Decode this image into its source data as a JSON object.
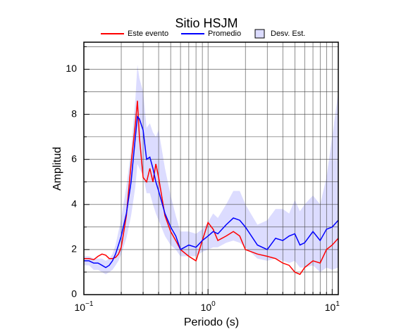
{
  "chart_data": {
    "type": "line",
    "title": "Sitio HSJM",
    "xlabel": "Periodo (s)",
    "ylabel": "Amplitud",
    "xscale": "log",
    "grid": true,
    "legend": "top",
    "xlim": [
      0.1,
      11.2
    ],
    "ylim": [
      0,
      11.2
    ],
    "xticks": [
      {
        "value": 0.1,
        "label": "10",
        "exponent": "−1"
      },
      {
        "value": 1,
        "label": "10",
        "exponent": "0"
      },
      {
        "value": 10,
        "label": "10",
        "exponent": "1"
      }
    ],
    "xminorticks": [
      0.2,
      0.3,
      0.4,
      0.5,
      0.6,
      0.7,
      0.8,
      0.9,
      2,
      3,
      4,
      5,
      6,
      7,
      8,
      9
    ],
    "yticks": [
      0,
      2,
      4,
      6,
      8,
      10
    ],
    "yminorticks": [
      1,
      3,
      5,
      7,
      9,
      11
    ],
    "x": [
      0.1,
      0.11,
      0.12,
      0.13,
      0.14,
      0.15,
      0.16,
      0.17,
      0.18,
      0.19,
      0.2,
      0.22,
      0.24,
      0.26,
      0.27,
      0.28,
      0.3,
      0.32,
      0.34,
      0.36,
      0.38,
      0.4,
      0.45,
      0.5,
      0.55,
      0.6,
      0.7,
      0.8,
      0.9,
      1.0,
      1.1,
      1.2,
      1.4,
      1.6,
      1.8,
      2,
      2.5,
      3,
      3.5,
      4,
      4.5,
      5,
      5.5,
      6,
      7,
      8,
      9,
      10,
      11.2
    ],
    "series": [
      {
        "name": "Desv. Est.",
        "kind": "band",
        "color": "#dcdcff",
        "lower": [
          1.3,
          1.3,
          1.1,
          1.1,
          1.0,
          0.9,
          1.0,
          1.1,
          1.3,
          1.5,
          1.8,
          2.5,
          3.5,
          4.8,
          5.8,
          5.6,
          5.3,
          4.5,
          4.5,
          4.0,
          3.6,
          3.3,
          2.6,
          2.2,
          2.0,
          1.7,
          1.7,
          1.7,
          1.9,
          2.0,
          2.1,
          2.1,
          2.3,
          2.4,
          2.3,
          2.1,
          1.6,
          1.5,
          1.6,
          1.5,
          1.4,
          1.5,
          1.2,
          1.2,
          1.3,
          1.0,
          1.2,
          1.1,
          1.2
        ],
        "upper": [
          1.7,
          1.7,
          1.6,
          1.6,
          1.6,
          1.5,
          1.6,
          1.8,
          2.2,
          2.8,
          3.4,
          4.8,
          6.4,
          8.7,
          10.2,
          9.6,
          9.0,
          7.4,
          7.6,
          7.2,
          7.0,
          7.3,
          5.6,
          4.4,
          3.5,
          2.8,
          2.8,
          2.7,
          2.9,
          3.2,
          3.6,
          3.4,
          4.0,
          4.6,
          4.6,
          4.0,
          3.1,
          3.3,
          3.8,
          3.8,
          3.6,
          4.2,
          3.7,
          4.0,
          4.4,
          4.0,
          5.2,
          7.0,
          9.0
        ]
      },
      {
        "name": "Este evento",
        "color": "#ff0000",
        "values": [
          1.6,
          1.6,
          1.55,
          1.7,
          1.8,
          1.75,
          1.6,
          1.6,
          1.65,
          1.8,
          2.1,
          3.5,
          5.8,
          7.6,
          8.6,
          7.0,
          5.2,
          5.0,
          5.6,
          5.0,
          5.8,
          5.2,
          3.5,
          2.8,
          2.4,
          2.0,
          1.7,
          1.5,
          2.4,
          3.2,
          2.9,
          2.4,
          2.6,
          2.8,
          2.6,
          2.0,
          1.8,
          1.7,
          1.6,
          1.4,
          1.3,
          1.0,
          0.9,
          1.2,
          1.5,
          1.4,
          2.0,
          2.2,
          2.5
        ]
      },
      {
        "name": "Promedio",
        "color": "#0000ff",
        "values": [
          1.5,
          1.5,
          1.4,
          1.4,
          1.3,
          1.2,
          1.3,
          1.5,
          1.8,
          2.2,
          2.6,
          3.6,
          5.0,
          7.0,
          7.9,
          7.8,
          7.3,
          6.0,
          6.1,
          5.6,
          5.0,
          4.6,
          3.6,
          3.0,
          2.6,
          2.0,
          2.2,
          2.1,
          2.4,
          2.6,
          2.8,
          2.7,
          3.1,
          3.4,
          3.3,
          3.0,
          2.2,
          2.0,
          2.5,
          2.4,
          2.6,
          2.7,
          2.2,
          2.3,
          2.8,
          2.4,
          2.9,
          3.0,
          3.3
        ]
      }
    ]
  }
}
